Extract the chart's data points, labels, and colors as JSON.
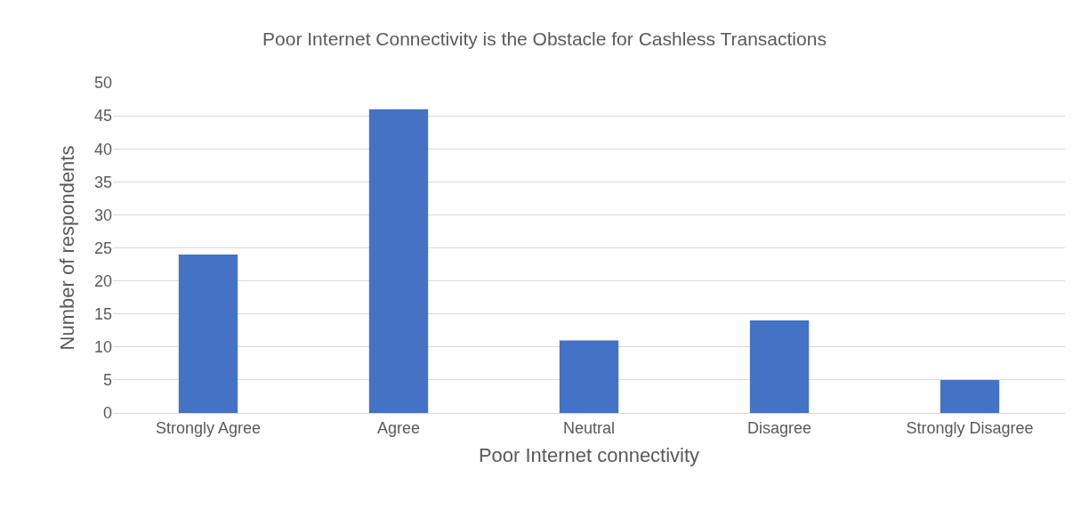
{
  "chart_data": {
    "type": "bar",
    "title": "Poor Internet Connectivity is the Obstacle for Cashless Transactions",
    "xlabel": "Poor Internet connectivity",
    "ylabel": "Number of respondents",
    "categories": [
      "Strongly Agree",
      "Agree",
      "Neutral",
      "Disagree",
      "Strongly Disagree"
    ],
    "values": [
      24,
      46,
      11,
      14,
      5
    ],
    "color": "#4472c4",
    "ylim": [
      0,
      50
    ],
    "yticks": [
      0,
      5,
      10,
      15,
      20,
      25,
      30,
      35,
      40,
      45,
      50
    ],
    "grid": "y"
  }
}
